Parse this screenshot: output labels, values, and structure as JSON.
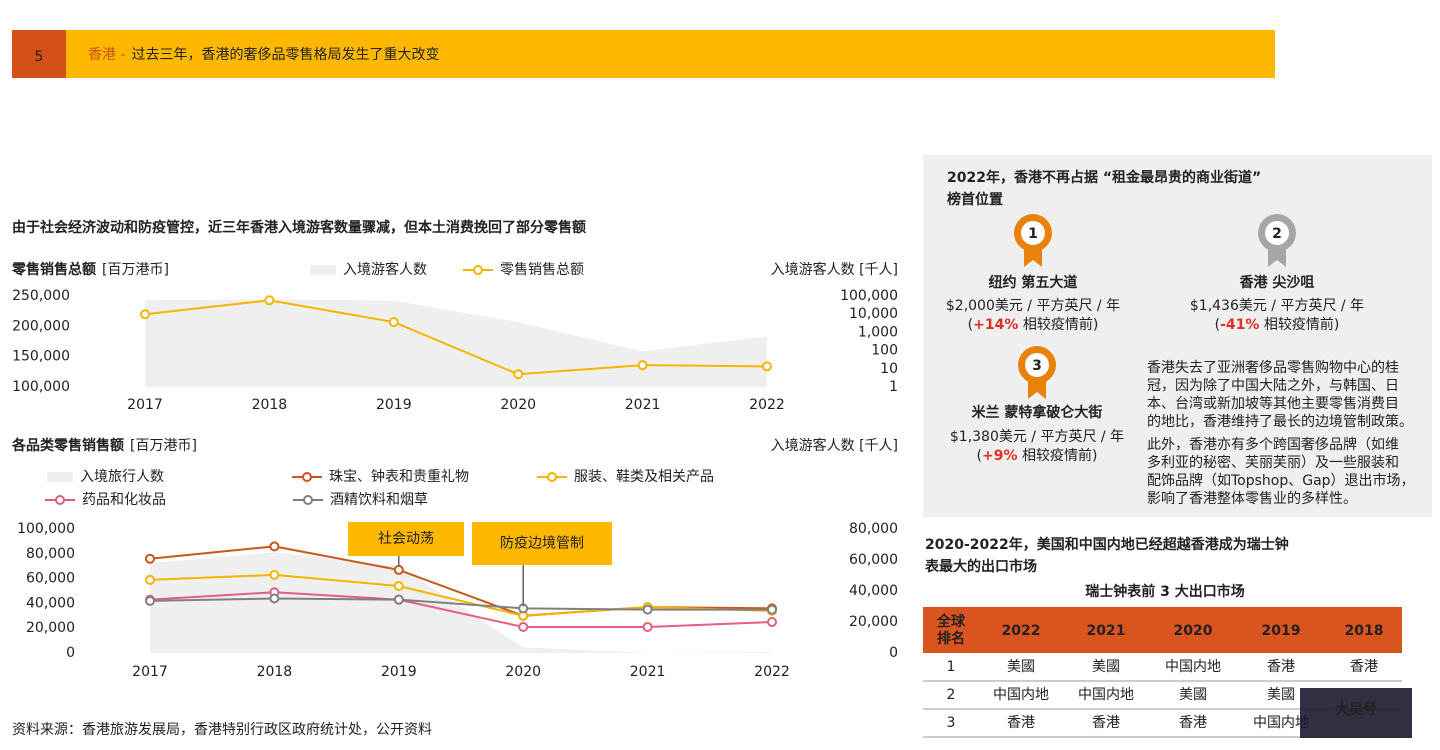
{
  "header": {
    "number": "5",
    "region": "香港 -",
    "title": "过去三年，香港的奢侈品零售格局发生了重大改变"
  },
  "section_title": "由于社会经济波动和防疫管控，近三年香港入境游客数量骤减，但本土消费挽回了部分零售额",
  "chart_data": [
    {
      "type": "line",
      "ylabel": "零售销售总额",
      "ylabel_unit": "[百万港币]",
      "y2label": "入境游客人数 [千人]",
      "categories": [
        "2017",
        "2018",
        "2019",
        "2020",
        "2021",
        "2022"
      ],
      "ylim": [
        100000,
        250000
      ],
      "yticks": [
        {
          "value": 100000,
          "label": "100,000"
        },
        {
          "value": 150000,
          "label": "150,000"
        },
        {
          "value": 200000,
          "label": "200,000"
        },
        {
          "value": 250000,
          "label": "250,000"
        }
      ],
      "y2lim": [
        1,
        100000
      ],
      "y2scale": "log",
      "y2ticks": [
        1,
        10,
        100,
        {
          "value": 1000,
          "label": "1,000"
        },
        {
          "value": 10000,
          "label": "10,000"
        },
        {
          "value": 100000,
          "label": "100,000"
        }
      ],
      "series": [
        {
          "name": "入境游客人数",
          "color": "#efefef",
          "style": "area",
          "axis": "y2",
          "values": [
            58000,
            65000,
            56000,
            3600,
            91,
            600
          ]
        },
        {
          "name": "零售销售总额",
          "color": "#f5b400",
          "style": "line",
          "values": [
            220000,
            243000,
            207000,
            121000,
            136000,
            134000
          ]
        }
      ]
    },
    {
      "type": "line",
      "ylabel": "各品类零售销售额",
      "ylabel_unit": "[百万港币]",
      "y2label": "入境游客人数 [千人]",
      "categories": [
        "2017",
        "2018",
        "2019",
        "2020",
        "2021",
        "2022"
      ],
      "ylim": [
        0,
        100000
      ],
      "yticks": [
        0,
        {
          "value": 20000,
          "label": "20,000"
        },
        {
          "value": 40000,
          "label": "40,000"
        },
        {
          "value": 60000,
          "label": "60,000"
        },
        {
          "value": 80000,
          "label": "80,000"
        },
        {
          "value": 100000,
          "label": "100,000"
        }
      ],
      "y2lim": [
        0,
        80000
      ],
      "y2ticks": [
        0,
        {
          "value": 20000,
          "label": "20,000"
        },
        {
          "value": 40000,
          "label": "40,000"
        },
        {
          "value": 60000,
          "label": "60,000"
        },
        {
          "value": 80000,
          "label": "80,000"
        }
      ],
      "series": [
        {
          "name": "入境旅行人数",
          "color": "#efefef",
          "style": "area",
          "axis": "y2",
          "values": [
            58000,
            65000,
            56000,
            3600,
            91,
            600
          ]
        },
        {
          "name": "珠宝、钟表和贵重礼物",
          "color": "#c9571a",
          "style": "line",
          "values": [
            76000,
            86000,
            67000,
            30000,
            37000,
            36000
          ]
        },
        {
          "name": "服装、鞋类及相关产品",
          "color": "#f5b400",
          "style": "line",
          "values": [
            59000,
            63000,
            54000,
            30000,
            37000,
            34000
          ]
        },
        {
          "name": "药品和化妆品",
          "color": "#e0607e",
          "style": "line",
          "values": [
            43000,
            49000,
            43000,
            21000,
            21000,
            25000
          ]
        },
        {
          "name": "酒精饮料和烟草",
          "color": "#808080",
          "style": "line",
          "values": [
            42000,
            44000,
            43000,
            36000,
            35000,
            35000
          ]
        }
      ],
      "annotations": [
        {
          "text": "社会动荡",
          "x": "2019"
        },
        {
          "text": "防疫边境管制",
          "x": "2020"
        }
      ]
    }
  ],
  "ranking_panel": {
    "title": [
      "2022年，香港不再占据 “租金最昂贵的商业街道”",
      "榜首位置"
    ],
    "entries": [
      {
        "rank": "1",
        "color": "#e8820c",
        "location": "纽约 第五大道",
        "price": "$2,000美元 / 平方英尺 / 年",
        "change": [
          "(",
          "+14%",
          " 相较疫情前)"
        ]
      },
      {
        "rank": "2",
        "color": "#a6a6a6",
        "location": "香港 尖沙咀",
        "price": "$1,436美元 / 平方英尺 / 年",
        "change": [
          "(",
          "-41%",
          " 相较疫情前)"
        ]
      },
      {
        "rank": "3",
        "color": "#e8820c",
        "location": "米兰 蒙特拿破仑大街",
        "price": "$1,380美元 / 平方英尺 / 年",
        "change": [
          "(",
          "+9%",
          " 相较疫情前)"
        ]
      }
    ],
    "paragraphs": [
      [
        "香港失去了亚洲奢侈品零售购物中心的桂",
        "冠，因为除了中国大陆之外，与韩国、日",
        "本、台湾或新加坡等其他主要零售消费目",
        "的地比，香港维持了最长的边境管制政策。"
      ],
      [
        "此外，香港亦有多个跨国奢侈品牌（如维",
        "多利亚的秘密、芙丽芙丽）及一些服装和",
        "配饰品牌（如Topshop、Gap）退出市场，",
        "影响了香港整体零售业的多样性。"
      ]
    ]
  },
  "export_table": {
    "title": [
      "2020-2022年，美国和中国内地已经超越香港成为瑞士钟",
      "表最大的出口市场"
    ],
    "subtitle": "瑞士钟表前 3 大出口市场",
    "rank_header": [
      "全球",
      "排名"
    ],
    "columns": [
      "2022",
      "2021",
      "2020",
      "2019",
      "2018"
    ],
    "rows": [
      [
        "1",
        "美國",
        "美國",
        "中国内地",
        "香港",
        "香港"
      ],
      [
        "2",
        "中国内地",
        "中国内地",
        "美國",
        "美國",
        null
      ],
      [
        "3",
        "香港",
        "香港",
        "香港",
        "中国内地",
        null
      ]
    ]
  },
  "watermark": "大吴号",
  "source": "资料来源：香港旅游发展局，香港特别行政区政府统计处，公开资料"
}
